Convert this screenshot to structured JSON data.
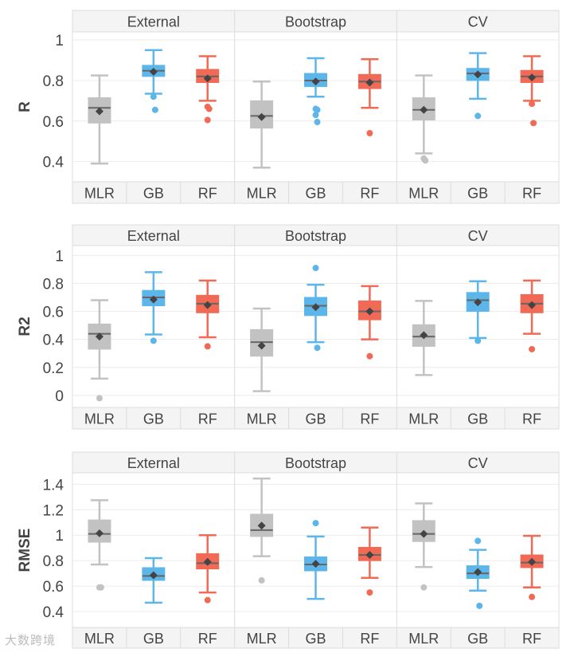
{
  "chart_data": {
    "type": "boxplot",
    "facets": [
      "External",
      "Bootstrap",
      "CV"
    ],
    "categories": [
      "MLR",
      "GB",
      "RF"
    ],
    "colors": {
      "MLR": "#c2c2c2",
      "GB": "#5db6ea",
      "RF": "#f06a55",
      "median": "#666666",
      "mean": "#444444"
    },
    "panels": [
      {
        "ylabel": "R",
        "ylim": [
          0.3,
          1.04
        ],
        "yticks": [
          0.4,
          0.6,
          0.8,
          1
        ],
        "ytick_labels": [
          "0.4",
          "0.6",
          "0.8",
          "1"
        ],
        "boxes": [
          [
            {
              "lo": 0.39,
              "q1": 0.59,
              "med": 0.665,
              "q3": 0.715,
              "hi": 0.825,
              "mean": 0.648,
              "outliers": []
            },
            {
              "lo": 0.735,
              "q1": 0.82,
              "med": 0.848,
              "q3": 0.875,
              "hi": 0.95,
              "mean": 0.843,
              "outliers": [
                0.72,
                0.655
              ]
            },
            {
              "lo": 0.7,
              "q1": 0.79,
              "med": 0.82,
              "q3": 0.855,
              "hi": 0.92,
              "mean": 0.81,
              "outliers": [
                0.67,
                0.66,
                0.605
              ]
            }
          ],
          [
            {
              "lo": 0.37,
              "q1": 0.565,
              "med": 0.625,
              "q3": 0.7,
              "hi": 0.795,
              "mean": 0.62,
              "outliers": []
            },
            {
              "lo": 0.72,
              "q1": 0.77,
              "med": 0.8,
              "q3": 0.835,
              "hi": 0.91,
              "mean": 0.795,
              "outliers": [
                0.66,
                0.655,
                0.63,
                0.595
              ]
            },
            {
              "lo": 0.665,
              "q1": 0.76,
              "med": 0.795,
              "q3": 0.83,
              "hi": 0.905,
              "mean": 0.79,
              "outliers": [
                0.54
              ]
            }
          ],
          [
            {
              "lo": 0.44,
              "q1": 0.605,
              "med": 0.655,
              "q3": 0.715,
              "hi": 0.825,
              "mean": 0.655,
              "outliers": [
                0.415,
                0.405
              ]
            },
            {
              "lo": 0.71,
              "q1": 0.8,
              "med": 0.835,
              "q3": 0.86,
              "hi": 0.935,
              "mean": 0.83,
              "outliers": [
                0.625
              ]
            },
            {
              "lo": 0.7,
              "q1": 0.79,
              "med": 0.82,
              "q3": 0.85,
              "hi": 0.92,
              "mean": 0.815,
              "outliers": [
                0.685,
                0.59
              ]
            }
          ]
        ]
      },
      {
        "ylabel": "R2",
        "ylim": [
          -0.086,
          1.07
        ],
        "yticks": [
          0,
          0.2,
          0.4,
          0.6,
          0.8,
          1
        ],
        "ytick_labels": [
          "0",
          "0.2",
          "0.4",
          "0.6",
          "0.8",
          "1"
        ],
        "boxes": [
          [
            {
              "lo": 0.12,
              "q1": 0.33,
              "med": 0.44,
              "q3": 0.51,
              "hi": 0.68,
              "mean": 0.42,
              "outliers": [
                -0.02
              ]
            },
            {
              "lo": 0.435,
              "q1": 0.64,
              "med": 0.7,
              "q3": 0.75,
              "hi": 0.88,
              "mean": 0.685,
              "outliers": [
                0.39
              ]
            },
            {
              "lo": 0.415,
              "q1": 0.59,
              "med": 0.655,
              "q3": 0.715,
              "hi": 0.82,
              "mean": 0.645,
              "outliers": [
                0.35
              ]
            }
          ],
          [
            {
              "lo": 0.03,
              "q1": 0.28,
              "med": 0.38,
              "q3": 0.47,
              "hi": 0.62,
              "mean": 0.355,
              "outliers": []
            },
            {
              "lo": 0.38,
              "q1": 0.57,
              "med": 0.64,
              "q3": 0.7,
              "hi": 0.79,
              "mean": 0.63,
              "outliers": [
                0.91,
                0.34
              ]
            },
            {
              "lo": 0.4,
              "q1": 0.54,
              "med": 0.6,
              "q3": 0.675,
              "hi": 0.78,
              "mean": 0.6,
              "outliers": [
                0.28
              ]
            }
          ],
          [
            {
              "lo": 0.145,
              "q1": 0.35,
              "med": 0.42,
              "q3": 0.505,
              "hi": 0.675,
              "mean": 0.43,
              "outliers": []
            },
            {
              "lo": 0.41,
              "q1": 0.6,
              "med": 0.68,
              "q3": 0.735,
              "hi": 0.815,
              "mean": 0.665,
              "outliers": [
                0.39
              ]
            },
            {
              "lo": 0.44,
              "q1": 0.59,
              "med": 0.655,
              "q3": 0.72,
              "hi": 0.82,
              "mean": 0.645,
              "outliers": [
                0.33
              ]
            }
          ]
        ]
      },
      {
        "ylabel": "RMSE",
        "ylim": [
          0.275,
          1.49
        ],
        "yticks": [
          0.4,
          0.6,
          0.8,
          1,
          1.2,
          1.4
        ],
        "ytick_labels": [
          "0.4",
          "0.6",
          "0.8",
          "1",
          "1.2",
          "1.4"
        ],
        "boxes": [
          [
            {
              "lo": 0.77,
              "q1": 0.945,
              "med": 1.01,
              "q3": 1.12,
              "hi": 1.275,
              "mean": 1.015,
              "outliers": [
                0.59,
                0.59
              ]
            },
            {
              "lo": 0.47,
              "q1": 0.645,
              "med": 0.68,
              "q3": 0.745,
              "hi": 0.82,
              "mean": 0.685,
              "outliers": []
            },
            {
              "lo": 0.55,
              "q1": 0.735,
              "med": 0.78,
              "q3": 0.855,
              "hi": 1.0,
              "mean": 0.79,
              "outliers": [
                0.49
              ]
            }
          ],
          [
            {
              "lo": 0.835,
              "q1": 0.99,
              "med": 1.04,
              "q3": 1.165,
              "hi": 1.445,
              "mean": 1.075,
              "outliers": [
                0.645
              ]
            },
            {
              "lo": 0.5,
              "q1": 0.72,
              "med": 0.77,
              "q3": 0.83,
              "hi": 0.99,
              "mean": 0.775,
              "outliers": [
                1.095
              ]
            },
            {
              "lo": 0.665,
              "q1": 0.8,
              "med": 0.845,
              "q3": 0.905,
              "hi": 1.06,
              "mean": 0.845,
              "outliers": [
                0.55
              ]
            }
          ],
          [
            {
              "lo": 0.75,
              "q1": 0.95,
              "med": 1.01,
              "q3": 1.115,
              "hi": 1.25,
              "mean": 1.01,
              "outliers": [
                0.59
              ]
            },
            {
              "lo": 0.565,
              "q1": 0.66,
              "med": 0.7,
              "q3": 0.76,
              "hi": 0.885,
              "mean": 0.71,
              "outliers": [
                0.955,
                0.445
              ]
            },
            {
              "lo": 0.59,
              "q1": 0.745,
              "med": 0.785,
              "q3": 0.845,
              "hi": 0.995,
              "mean": 0.79,
              "outliers": [
                0.515
              ]
            }
          ]
        ]
      }
    ],
    "grid": true,
    "legend": "none"
  },
  "watermark": "大数跨境"
}
